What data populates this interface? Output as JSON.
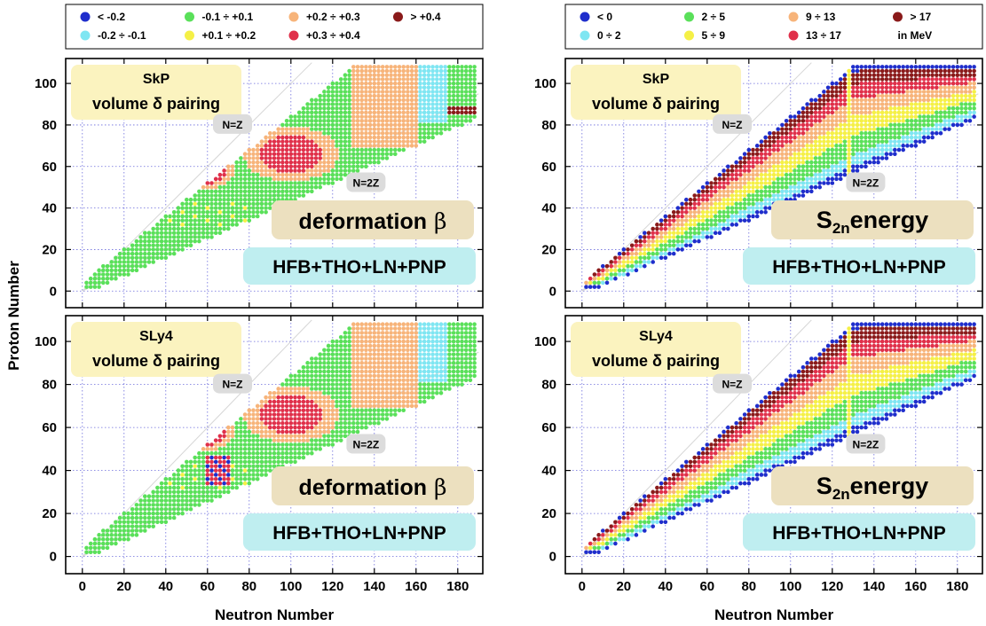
{
  "figure": {
    "y_axis_label": "Proton Number",
    "x_axis_label": "Neutron Number"
  },
  "legends": {
    "deformation": {
      "entries": [
        {
          "label": "< -0.2",
          "color": "#1f2ecc"
        },
        {
          "label": "-0.2 ÷ -0.1",
          "color": "#7fe6f2"
        },
        {
          "label": "-0.1 ÷ +0.1",
          "color": "#5ae05a"
        },
        {
          "label": "+0.1 ÷ +0.2",
          "color": "#f5f046"
        },
        {
          "label": "+0.2 ÷ +0.3",
          "color": "#f7b47a"
        },
        {
          "label": "+0.3 ÷ +0.4",
          "color": "#e0304a"
        },
        {
          "label": "> +0.4",
          "color": "#8a1a1a"
        }
      ]
    },
    "s2n": {
      "entries": [
        {
          "label": "< 0",
          "color": "#1f2ecc"
        },
        {
          "label": "0 ÷ 2",
          "color": "#7fe6f2"
        },
        {
          "label": "2 ÷ 5",
          "color": "#5ae05a"
        },
        {
          "label": "5 ÷ 9",
          "color": "#f5f046"
        },
        {
          "label": "9 ÷ 13",
          "color": "#f7b47a"
        },
        {
          "label": "13 ÷ 17",
          "color": "#e0304a"
        },
        {
          "label": "> 17",
          "color": "#8a1a1a"
        }
      ],
      "unit_note": "in MeV"
    }
  },
  "chart_data": [
    {
      "type": "heatmap",
      "quantity": "deformation",
      "force_label": "SkP",
      "pairing_label": "volume δ pairing",
      "quantity_label_main": "deformation",
      "quantity_label_symbol": "β",
      "method_label": "HFB+THO+LN+PNP",
      "line_labels": [
        "N=Z",
        "N=2Z"
      ],
      "xlim": [
        -8,
        192
      ],
      "ylim": [
        -8,
        112
      ],
      "x_ticks": [
        0,
        20,
        40,
        60,
        80,
        100,
        120,
        140,
        160,
        180
      ],
      "y_ticks": [
        0,
        20,
        40,
        60,
        80,
        100
      ],
      "grid": true
    },
    {
      "type": "heatmap",
      "quantity": "s2n",
      "force_label": "SkP",
      "pairing_label": "volume δ pairing",
      "quantity_label_main": "S",
      "quantity_label_sub": "2n",
      "quantity_label_rest": "energy",
      "method_label": "HFB+THO+LN+PNP",
      "line_labels": [
        "N=Z",
        "N=2Z"
      ],
      "xlim": [
        -8,
        192
      ],
      "ylim": [
        -8,
        112
      ],
      "x_ticks": [
        0,
        20,
        40,
        60,
        80,
        100,
        120,
        140,
        160,
        180
      ],
      "y_ticks": [
        0,
        20,
        40,
        60,
        80,
        100
      ],
      "grid": true
    },
    {
      "type": "heatmap",
      "quantity": "deformation",
      "force_label": "SLy4",
      "pairing_label": "volume δ pairing",
      "quantity_label_main": "deformation",
      "quantity_label_symbol": "β",
      "method_label": "HFB+THO+LN+PNP",
      "line_labels": [
        "N=Z",
        "N=2Z"
      ],
      "xlim": [
        -8,
        192
      ],
      "ylim": [
        -8,
        112
      ],
      "x_ticks": [
        0,
        20,
        40,
        60,
        80,
        100,
        120,
        140,
        160,
        180
      ],
      "y_ticks": [
        0,
        20,
        40,
        60,
        80,
        100
      ],
      "grid": true
    },
    {
      "type": "heatmap",
      "quantity": "s2n",
      "force_label": "SLy4",
      "pairing_label": "volume δ pairing",
      "quantity_label_main": "S",
      "quantity_label_sub": "2n",
      "quantity_label_rest": "energy",
      "method_label": "HFB+THO+LN+PNP",
      "line_labels": [
        "N=Z",
        "N=2Z"
      ],
      "xlim": [
        -8,
        192
      ],
      "ylim": [
        -8,
        112
      ],
      "x_ticks": [
        0,
        20,
        40,
        60,
        80,
        100,
        120,
        140,
        160,
        180
      ],
      "y_ticks": [
        0,
        20,
        40,
        60,
        80,
        100
      ],
      "grid": true
    }
  ]
}
